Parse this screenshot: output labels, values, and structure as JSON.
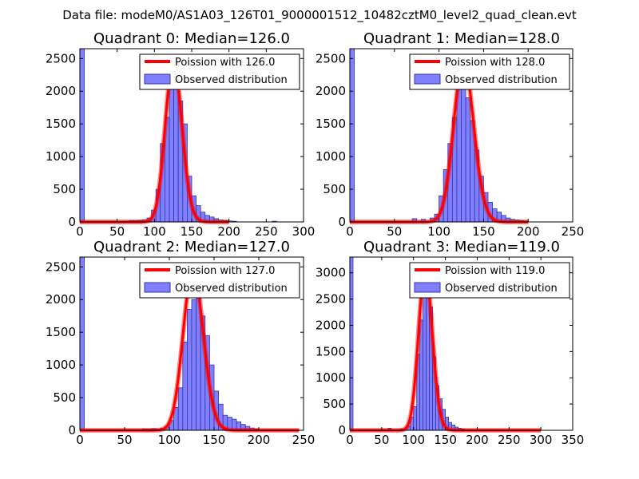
{
  "figure_title": "Data file: modeM0/AS1A03_126T01_9000001512_10482cztM0_level2_quad_clean.evt",
  "colors": {
    "bar_fill": "#8080ff",
    "bar_edge": "#3333aa",
    "poisson": "#ff0000",
    "background": "#ffffff"
  },
  "chart_data": [
    {
      "type": "bar",
      "title": "Quadrant 0: Median=126.0",
      "xlim": [
        0,
        300
      ],
      "ylim": [
        0,
        2650
      ],
      "xticks": [
        0,
        50,
        100,
        150,
        200,
        250,
        300
      ],
      "yticks": [
        0,
        500,
        1000,
        1500,
        2000,
        2500
      ],
      "bin_width": 6,
      "legend": [
        "Poission with 126.0",
        "Observed distribution"
      ],
      "bins": [
        [
          0,
          2650
        ],
        [
          66,
          20
        ],
        [
          72,
          20
        ],
        [
          78,
          25
        ],
        [
          84,
          35
        ],
        [
          90,
          60
        ],
        [
          96,
          180
        ],
        [
          102,
          500
        ],
        [
          108,
          1200
        ],
        [
          114,
          1600
        ],
        [
          120,
          2100
        ],
        [
          126,
          2200
        ],
        [
          132,
          1850
        ],
        [
          138,
          1500
        ],
        [
          144,
          700
        ],
        [
          150,
          400
        ],
        [
          156,
          250
        ],
        [
          162,
          150
        ],
        [
          168,
          100
        ],
        [
          174,
          75
        ],
        [
          180,
          50
        ],
        [
          186,
          30
        ],
        [
          192,
          20
        ],
        [
          198,
          15
        ],
        [
          204,
          10
        ],
        [
          258,
          10
        ]
      ],
      "poisson": {
        "mean": 126.0,
        "peak": 2450,
        "x_range": [
          0,
          200
        ]
      }
    },
    {
      "type": "bar",
      "title": "Quadrant 1: Median=128.0",
      "xlim": [
        0,
        250
      ],
      "ylim": [
        0,
        2650
      ],
      "xticks": [
        0,
        50,
        100,
        150,
        200,
        250
      ],
      "yticks": [
        0,
        500,
        1000,
        1500,
        2000,
        2500
      ],
      "bin_width": 5,
      "legend": [
        "Poission with 128.0",
        "Observed distribution"
      ],
      "bins": [
        [
          0,
          2650
        ],
        [
          70,
          50
        ],
        [
          80,
          40
        ],
        [
          90,
          60
        ],
        [
          95,
          120
        ],
        [
          100,
          400
        ],
        [
          105,
          800
        ],
        [
          110,
          1200
        ],
        [
          115,
          1600
        ],
        [
          120,
          2050
        ],
        [
          125,
          2200
        ],
        [
          130,
          1900
        ],
        [
          135,
          1550
        ],
        [
          140,
          1100
        ],
        [
          145,
          700
        ],
        [
          150,
          450
        ],
        [
          155,
          300
        ],
        [
          160,
          200
        ],
        [
          165,
          150
        ],
        [
          170,
          100
        ],
        [
          175,
          60
        ],
        [
          180,
          40
        ],
        [
          185,
          30
        ],
        [
          190,
          20
        ],
        [
          195,
          15
        ]
      ],
      "poisson": {
        "mean": 128.0,
        "peak": 2450,
        "x_range": [
          0,
          200
        ]
      }
    },
    {
      "type": "bar",
      "title": "Quadrant 2: Median=127.0",
      "xlim": [
        0,
        250
      ],
      "ylim": [
        0,
        2650
      ],
      "xticks": [
        0,
        50,
        100,
        150,
        200,
        250
      ],
      "yticks": [
        0,
        500,
        1000,
        1500,
        2000,
        2500
      ],
      "bin_width": 5,
      "legend": [
        "Poission with 127.0",
        "Observed distribution"
      ],
      "bins": [
        [
          0,
          2650
        ],
        [
          70,
          20
        ],
        [
          75,
          20
        ],
        [
          80,
          25
        ],
        [
          85,
          20
        ],
        [
          90,
          30
        ],
        [
          95,
          60
        ],
        [
          100,
          150
        ],
        [
          105,
          350
        ],
        [
          110,
          650
        ],
        [
          115,
          1350
        ],
        [
          120,
          1850
        ],
        [
          125,
          2000
        ],
        [
          130,
          2350
        ],
        [
          135,
          1750
        ],
        [
          140,
          1450
        ],
        [
          145,
          1000
        ],
        [
          150,
          600
        ],
        [
          155,
          400
        ],
        [
          160,
          230
        ],
        [
          165,
          200
        ],
        [
          170,
          170
        ],
        [
          175,
          130
        ],
        [
          180,
          90
        ],
        [
          185,
          60
        ],
        [
          190,
          35
        ],
        [
          195,
          20
        ]
      ],
      "poisson": {
        "mean": 127.0,
        "peak": 2450,
        "x_range": [
          0,
          245
        ]
      }
    },
    {
      "type": "bar",
      "title": "Quadrant 3: Median=119.0",
      "xlim": [
        0,
        350
      ],
      "ylim": [
        0,
        3300
      ],
      "xticks": [
        0,
        50,
        100,
        150,
        200,
        250,
        300,
        350
      ],
      "yticks": [
        0,
        500,
        1000,
        1500,
        2000,
        2500,
        3000
      ],
      "bin_width": 5,
      "legend": [
        "Poission with 119.0",
        "Observed distribution"
      ],
      "bins": [
        [
          0,
          3300
        ],
        [
          60,
          40
        ],
        [
          80,
          30
        ],
        [
          90,
          80
        ],
        [
          95,
          250
        ],
        [
          100,
          450
        ],
        [
          105,
          1450
        ],
        [
          110,
          2100
        ],
        [
          115,
          2800
        ],
        [
          120,
          3000
        ],
        [
          125,
          2350
        ],
        [
          130,
          1400
        ],
        [
          135,
          850
        ],
        [
          140,
          600
        ],
        [
          145,
          400
        ],
        [
          150,
          250
        ],
        [
          155,
          150
        ],
        [
          160,
          100
        ],
        [
          165,
          60
        ],
        [
          170,
          40
        ],
        [
          175,
          25
        ]
      ],
      "poisson": {
        "mean": 119.0,
        "peak": 3050,
        "x_range": [
          0,
          300
        ]
      }
    }
  ]
}
